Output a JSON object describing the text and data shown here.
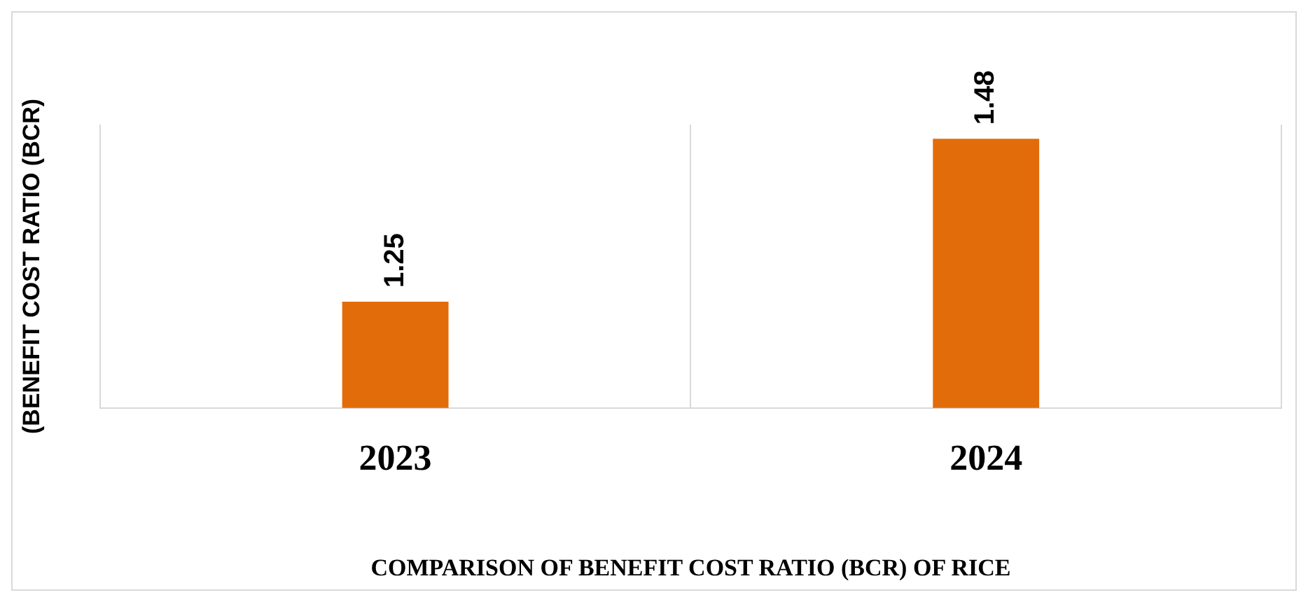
{
  "chart_data": {
    "type": "bar",
    "categories": [
      "2023",
      "2024"
    ],
    "values": [
      1.25,
      1.48
    ],
    "color": "#e36c0a",
    "data_labels": true,
    "ylim": [
      1.1,
      1.5
    ],
    "tick_labels": "x",
    "grid": "x",
    "xlabel": "COMPARISON OF BENEFIT COST RATIO (BCR) OF RICE",
    "ylabel": "(BENEFIT COST RATIO (BCR)"
  }
}
